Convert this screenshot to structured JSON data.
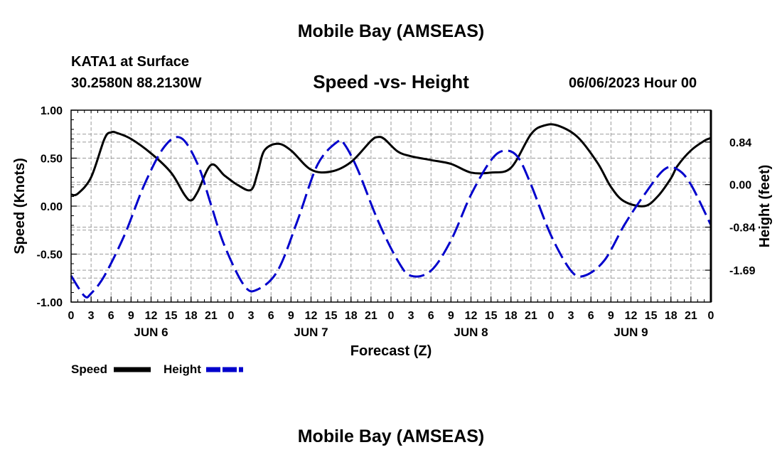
{
  "header": {
    "title": "Mobile Bay (AMSEAS)",
    "station": "KATA1 at Surface",
    "coords": "30.2580N  88.2130W",
    "subtitle": "Speed -vs- Height",
    "datetime": "06/06/2023 Hour 00"
  },
  "footer": {
    "title": "Mobile Bay (AMSEAS)"
  },
  "chart_data": {
    "type": "line",
    "xlabel": "Forecast (Z)",
    "ylabel": "Speed (Knots)",
    "ylabel_right": "Height (feet)",
    "grid": true,
    "legend_position": "bottom-left",
    "xlim": [
      0,
      96
    ],
    "ylim": [
      -1.0,
      1.0
    ],
    "ylim_right": [
      -2.32,
      1.47
    ],
    "hour_ticks": [
      "0",
      "3",
      "6",
      "9",
      "12",
      "15",
      "18",
      "21",
      "0",
      "3",
      "6",
      "9",
      "12",
      "15",
      "18",
      "21",
      "0",
      "3",
      "6",
      "9",
      "12",
      "15",
      "18",
      "21",
      "0",
      "3",
      "6",
      "9",
      "12",
      "15",
      "18",
      "21",
      "0"
    ],
    "day_labels": [
      {
        "label": "JUN 6",
        "hour": 12
      },
      {
        "label": "JUN 7",
        "hour": 36
      },
      {
        "label": "JUN 8",
        "hour": 60
      },
      {
        "label": "JUN 9",
        "hour": 84
      }
    ],
    "y_ticks_left": [
      "1.00",
      "0.50",
      "0.00",
      "-0.50",
      "-1.00"
    ],
    "y_ticks_right": [
      "0.84",
      "0.00",
      "-0.84",
      "-1.69"
    ],
    "series": [
      {
        "name": "Speed",
        "color": "#000000",
        "style": "solid",
        "axis": "left",
        "x": [
          0,
          1,
          3,
          5,
          6,
          7,
          9,
          12,
          15,
          17,
          18,
          19,
          21,
          23,
          25,
          27,
          28,
          29,
          31,
          33,
          36,
          39,
          42,
          45,
          46,
          47,
          49,
          51,
          54,
          57,
          60,
          63,
          66,
          69,
          71,
          73,
          76,
          79,
          81,
          83,
          86,
          88,
          90,
          91,
          93,
          95,
          96
        ],
        "y": [
          0.12,
          0.13,
          0.3,
          0.7,
          0.77,
          0.76,
          0.7,
          0.55,
          0.35,
          0.12,
          0.06,
          0.15,
          0.43,
          0.32,
          0.22,
          0.17,
          0.35,
          0.58,
          0.65,
          0.58,
          0.38,
          0.36,
          0.46,
          0.68,
          0.72,
          0.7,
          0.57,
          0.52,
          0.48,
          0.44,
          0.35,
          0.35,
          0.4,
          0.75,
          0.84,
          0.84,
          0.72,
          0.45,
          0.2,
          0.05,
          0.0,
          0.1,
          0.29,
          0.42,
          0.58,
          0.68,
          0.71
        ]
      },
      {
        "name": "Height",
        "color": "#0000cc",
        "style": "dashed",
        "axis": "right",
        "x": [
          0,
          2,
          3,
          5,
          8,
          11,
          14,
          16.5,
          19,
          21,
          23,
          26,
          28,
          31,
          34,
          37,
          40,
          41,
          43,
          46,
          49,
          51,
          54,
          57,
          60,
          63,
          65,
          67,
          69,
          72,
          75,
          77,
          80,
          83,
          86,
          89,
          91,
          93,
          96
        ],
        "y": [
          -1.8,
          -2.2,
          -2.15,
          -1.8,
          -1.0,
          0.0,
          0.75,
          0.92,
          0.4,
          -0.4,
          -1.2,
          -2.0,
          -2.07,
          -1.7,
          -0.7,
          0.4,
          0.85,
          0.8,
          0.3,
          -0.7,
          -1.5,
          -1.8,
          -1.7,
          -1.1,
          -0.2,
          0.48,
          0.67,
          0.55,
          0.0,
          -1.0,
          -1.7,
          -1.8,
          -1.5,
          -0.8,
          -0.2,
          0.3,
          0.3,
          0.0,
          -0.8
        ]
      }
    ]
  }
}
